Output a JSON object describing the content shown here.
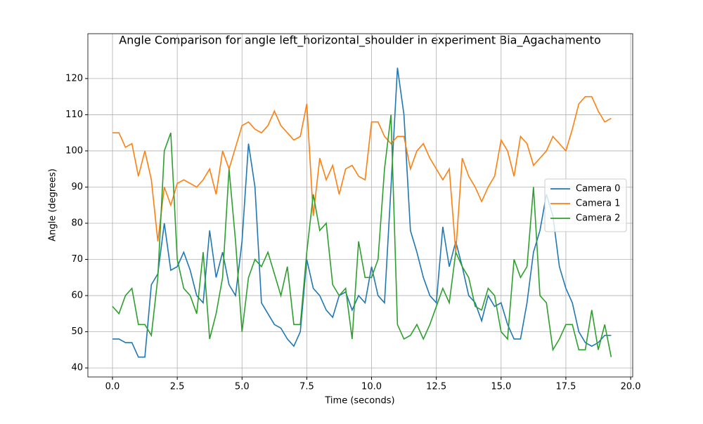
{
  "chart_data": {
    "type": "line",
    "title": "Angle Comparison for angle left_horizontal_shoulder in experiment Bia_Agachamento",
    "x_label": "Time (seconds)",
    "y_label": "Angle (degrees)",
    "x": [
      0,
      0.25,
      0.5,
      0.75,
      1,
      1.25,
      1.5,
      1.75,
      2,
      2.25,
      2.5,
      2.75,
      3,
      3.25,
      3.5,
      3.75,
      4,
      4.25,
      4.5,
      4.75,
      5,
      5.25,
      5.5,
      5.75,
      6,
      6.25,
      6.5,
      6.75,
      7,
      7.25,
      7.5,
      7.75,
      8,
      8.25,
      8.5,
      8.75,
      9,
      9.25,
      9.5,
      9.75,
      10,
      10.25,
      10.5,
      10.75,
      11,
      11.25,
      11.5,
      11.75,
      12,
      12.25,
      12.5,
      12.75,
      13,
      13.25,
      13.5,
      13.75,
      14,
      14.25,
      14.5,
      14.75,
      15,
      15.25,
      15.5,
      15.75,
      16,
      16.25,
      16.5,
      16.75,
      17,
      17.25,
      17.5,
      17.75,
      18,
      18.25,
      18.5,
      18.75,
      19,
      19.25
    ],
    "series": [
      {
        "name": "Camera 0",
        "color": "#1f77b4",
        "values": [
          48,
          48,
          47,
          47,
          43,
          43,
          63,
          66,
          80,
          67,
          68,
          72,
          67,
          60,
          58,
          78,
          65,
          72,
          63,
          60,
          75,
          102,
          90,
          58,
          55,
          52,
          51,
          48,
          46,
          50,
          70,
          62,
          60,
          56,
          54,
          60,
          61,
          56,
          60,
          58,
          68,
          60,
          58,
          90,
          123,
          110,
          78,
          72,
          65,
          60,
          58,
          79,
          68,
          75,
          68,
          60,
          58,
          53,
          60,
          57,
          58,
          52,
          48,
          48,
          58,
          72,
          78,
          88,
          82,
          68,
          62,
          58,
          50,
          47,
          46,
          47,
          49,
          49
        ]
      },
      {
        "name": "Camera 1",
        "color": "#ff7f0e",
        "values": [
          105,
          105,
          101,
          102,
          93,
          100,
          92,
          75,
          90,
          85,
          91,
          92,
          91,
          90,
          92,
          95,
          88,
          100,
          95,
          101,
          107,
          108,
          106,
          105,
          107,
          111,
          107,
          105,
          103,
          104,
          113,
          82,
          98,
          92,
          96,
          88,
          95,
          96,
          93,
          92,
          108,
          108,
          104,
          102,
          104,
          104,
          95,
          100,
          102,
          98,
          95,
          92,
          95,
          72,
          98,
          93,
          90,
          86,
          90,
          93,
          103,
          100,
          93,
          104,
          102,
          96,
          98,
          100,
          104,
          102,
          100,
          106,
          113,
          115,
          115,
          111,
          108,
          109
        ]
      },
      {
        "name": "Camera 2",
        "color": "#2ca02c",
        "values": [
          57,
          55,
          60,
          62,
          52,
          52,
          49,
          65,
          100,
          105,
          70,
          62,
          60,
          55,
          72,
          48,
          55,
          65,
          95,
          75,
          50,
          65,
          70,
          68,
          72,
          66,
          60,
          68,
          52,
          52,
          72,
          88,
          78,
          80,
          63,
          60,
          62,
          48,
          75,
          65,
          65,
          70,
          95,
          110,
          52,
          48,
          49,
          52,
          48,
          52,
          57,
          62,
          58,
          72,
          68,
          65,
          57,
          56,
          62,
          60,
          50,
          48,
          70,
          65,
          68,
          90,
          60,
          58,
          45,
          48,
          52,
          52,
          45,
          45,
          56,
          45,
          52,
          43
        ]
      }
    ],
    "xlim": [
      -0.95,
      20.08
    ],
    "ylim": [
      37.5,
      132.4
    ],
    "xticks": [
      {
        "value": 0,
        "label": "0.0"
      },
      {
        "value": 2.5,
        "label": "2.5"
      },
      {
        "value": 5,
        "label": "5.0"
      },
      {
        "value": 7.5,
        "label": "7.5"
      },
      {
        "value": 10,
        "label": "10.0"
      },
      {
        "value": 12.5,
        "label": "12.5"
      },
      {
        "value": 15,
        "label": "15.0"
      },
      {
        "value": 17.5,
        "label": "17.5"
      },
      {
        "value": 20,
        "label": "20.0"
      }
    ],
    "yticks": [
      40,
      50,
      60,
      70,
      80,
      90,
      100,
      110,
      120
    ],
    "grid": true,
    "legend": "center right"
  }
}
